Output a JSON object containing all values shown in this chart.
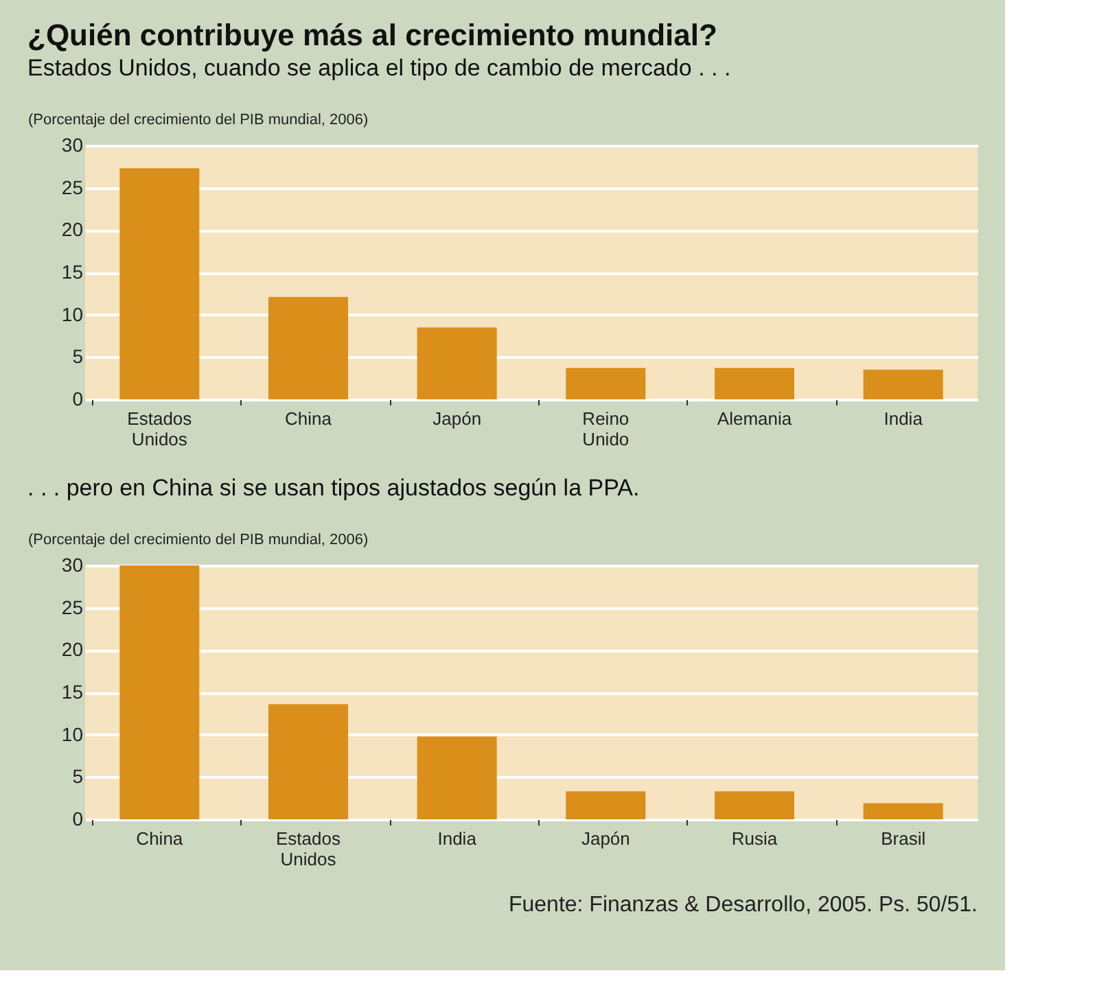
{
  "chart_data": [
    {
      "type": "bar",
      "title": "¿Quién contribuye más al crecimiento mundial?",
      "subtitle": "Estados Unidos, cuando se aplica el tipo de cambio de mercado . . .",
      "ylabel": "(Porcentaje del crecimiento del PIB mundial, 2006)",
      "categories": [
        "Estados Unidos",
        "China",
        "Japón",
        "Reino Unido",
        "Alemania",
        "India"
      ],
      "values": [
        27.3,
        12.1,
        8.5,
        3.7,
        3.7,
        3.5
      ],
      "color": "#d98f1a",
      "ylim": [
        0,
        30
      ],
      "yticks": [
        0,
        5,
        10,
        15,
        20,
        25,
        30
      ],
      "grid": "y"
    },
    {
      "type": "bar",
      "title": ". . . pero en China si se usan tipos ajustados según la PPA.",
      "ylabel": "(Porcentaje del crecimiento del PIB mundial, 2006)",
      "categories": [
        "China",
        "Estados Unidos",
        "India",
        "Japón",
        "Rusia",
        "Brasil"
      ],
      "values": [
        30,
        13.6,
        9.8,
        3.3,
        3.3,
        1.9
      ],
      "color": "#d98f1a",
      "ylim": [
        0,
        30
      ],
      "yticks": [
        0,
        5,
        10,
        15,
        20,
        25,
        30
      ],
      "grid": "y",
      "annotations": [
        "Fuente: Finanzas & Desarrollo, 2005. Ps. 50/51."
      ]
    }
  ]
}
